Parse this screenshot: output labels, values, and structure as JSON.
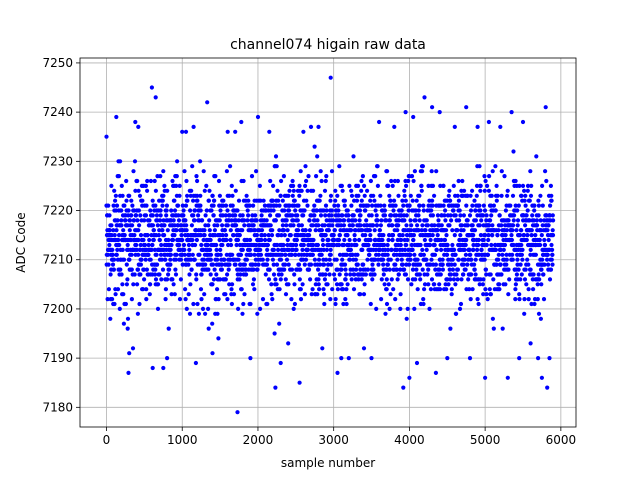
{
  "chart_data": {
    "type": "scatter",
    "title": "channel074 higain raw data",
    "xlabel": "sample number",
    "ylabel": "ADC Code",
    "xlim": [
      -350,
      6200
    ],
    "ylim": [
      7176,
      7251
    ],
    "xticks": [
      0,
      1000,
      2000,
      3000,
      4000,
      5000,
      6000
    ],
    "yticks": [
      7180,
      7190,
      7200,
      7210,
      7220,
      7230,
      7240,
      7250
    ],
    "grid": true,
    "marker_color": "#0000ff",
    "series": [
      {
        "n_samples": 5900,
        "center": 7214,
        "core_spread": [
          7205,
          7230
        ],
        "points": [
          [
            0,
            7235
          ],
          [
            50,
            7198
          ],
          [
            130,
            7239
          ],
          [
            180,
            7230
          ],
          [
            230,
            7197
          ],
          [
            280,
            7196
          ],
          [
            290,
            7187
          ],
          [
            300,
            7191
          ],
          [
            350,
            7192
          ],
          [
            380,
            7238
          ],
          [
            420,
            7237
          ],
          [
            600,
            7245
          ],
          [
            650,
            7243
          ],
          [
            610,
            7188
          ],
          [
            750,
            7188
          ],
          [
            800,
            7190
          ],
          [
            1000,
            7236
          ],
          [
            1050,
            7236
          ],
          [
            1150,
            7237
          ],
          [
            1180,
            7189
          ],
          [
            1330,
            7242
          ],
          [
            1350,
            7196
          ],
          [
            1400,
            7191
          ],
          [
            1600,
            7236
          ],
          [
            1700,
            7236
          ],
          [
            1730,
            7179
          ],
          [
            1780,
            7238
          ],
          [
            1900,
            7190
          ],
          [
            2000,
            7239
          ],
          [
            2150,
            7236
          ],
          [
            2230,
            7184
          ],
          [
            2300,
            7189
          ],
          [
            2400,
            7193
          ],
          [
            2550,
            7185
          ],
          [
            2600,
            7236
          ],
          [
            2700,
            7237
          ],
          [
            2800,
            7237
          ],
          [
            2850,
            7192
          ],
          [
            2960,
            7247
          ],
          [
            3050,
            7187
          ],
          [
            3100,
            7190
          ],
          [
            3200,
            7190
          ],
          [
            3400,
            7192
          ],
          [
            3500,
            7190
          ],
          [
            3600,
            7238
          ],
          [
            3800,
            7237
          ],
          [
            3920,
            7184
          ],
          [
            3950,
            7240
          ],
          [
            4000,
            7186
          ],
          [
            4050,
            7239
          ],
          [
            4100,
            7189
          ],
          [
            4200,
            7243
          ],
          [
            4300,
            7241
          ],
          [
            4350,
            7187
          ],
          [
            4400,
            7240
          ],
          [
            4500,
            7190
          ],
          [
            4600,
            7237
          ],
          [
            4750,
            7241
          ],
          [
            4800,
            7190
          ],
          [
            4900,
            7237
          ],
          [
            5000,
            7186
          ],
          [
            5050,
            7238
          ],
          [
            5200,
            7237
          ],
          [
            5300,
            7186
          ],
          [
            5350,
            7240
          ],
          [
            5450,
            7190
          ],
          [
            5500,
            7238
          ],
          [
            5600,
            7193
          ],
          [
            5700,
            7190
          ],
          [
            5750,
            7186
          ],
          [
            5800,
            7241
          ],
          [
            5820,
            7184
          ],
          [
            5850,
            7190
          ]
        ]
      }
    ]
  }
}
